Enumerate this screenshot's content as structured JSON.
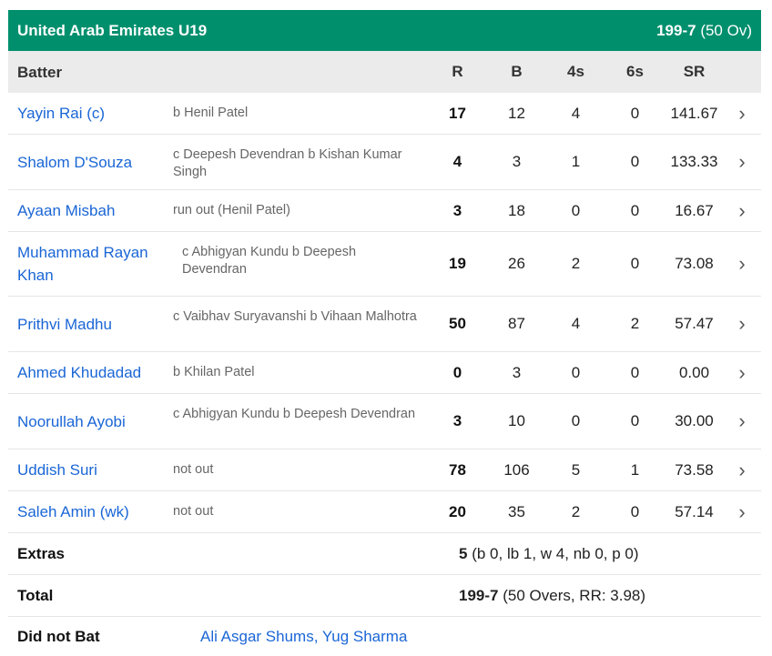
{
  "header": {
    "team": "United Arab Emirates U19",
    "score": "199-7",
    "overs": "(50 Ov)",
    "bg_color": "#008f6d"
  },
  "columns": {
    "batter": "Batter",
    "r": "R",
    "b": "B",
    "fours": "4s",
    "sixes": "6s",
    "sr": "SR"
  },
  "batters": [
    {
      "name": "Yayin Rai (c)",
      "dismissal": "b Henil Patel",
      "r": "17",
      "b": "12",
      "fours": "4",
      "sixes": "0",
      "sr": "141.67"
    },
    {
      "name": "Shalom D'Souza",
      "dismissal": "c Deepesh Devendran b Kishan Kumar Singh",
      "r": "4",
      "b": "3",
      "fours": "1",
      "sixes": "0",
      "sr": "133.33"
    },
    {
      "name": "Ayaan Misbah",
      "dismissal": "run out (Henil Patel)",
      "r": "3",
      "b": "18",
      "fours": "0",
      "sixes": "0",
      "sr": "16.67"
    },
    {
      "name": "Muhammad Rayan Khan",
      "dismissal": "c Abhigyan Kundu b Deepesh Devendran",
      "r": "19",
      "b": "26",
      "fours": "2",
      "sixes": "0",
      "sr": "73.08"
    },
    {
      "name": "Prithvi Madhu",
      "dismissal": "c Vaibhav Suryavanshi b Vihaan Malhotra",
      "r": "50",
      "b": "87",
      "fours": "4",
      "sixes": "2",
      "sr": "57.47"
    },
    {
      "name": "Ahmed Khudadad",
      "dismissal": "b Khilan Patel",
      "r": "0",
      "b": "3",
      "fours": "0",
      "sixes": "0",
      "sr": "0.00"
    },
    {
      "name": "Noorullah Ayobi",
      "dismissal": "c Abhigyan Kundu b Deepesh Devendran",
      "r": "3",
      "b": "10",
      "fours": "0",
      "sixes": "0",
      "sr": "30.00"
    },
    {
      "name": "Uddish Suri",
      "dismissal": "not out",
      "r": "78",
      "b": "106",
      "fours": "5",
      "sixes": "1",
      "sr": "73.58"
    },
    {
      "name": "Saleh Amin (wk)",
      "dismissal": "not out",
      "r": "20",
      "b": "35",
      "fours": "2",
      "sixes": "0",
      "sr": "57.14"
    }
  ],
  "extras": {
    "label": "Extras",
    "value": "5",
    "detail": "(b 0, lb 1, w 4, nb 0, p 0)"
  },
  "total": {
    "label": "Total",
    "value": "199-7",
    "detail": "(50 Overs, RR: 3.98)"
  },
  "did_not_bat": {
    "label": "Did not Bat",
    "players": "Ali Asgar Shums, Yug Sharma"
  }
}
